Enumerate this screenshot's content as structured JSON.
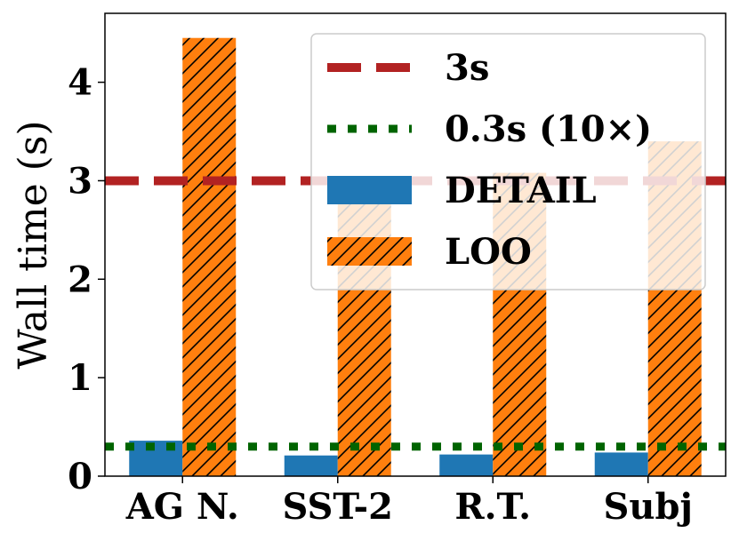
{
  "chart_data": {
    "type": "bar",
    "title": "",
    "xlabel": "",
    "ylabel": "Wall time (s)",
    "categories": [
      "AG N.",
      "SST-2",
      "R.T.",
      "Subj"
    ],
    "ylim": [
      0,
      4.7
    ],
    "yticks": [
      "0",
      "1",
      "2",
      "3",
      "4"
    ],
    "series": [
      {
        "name": "DETAIL",
        "values": [
          0.36,
          0.21,
          0.22,
          0.24
        ],
        "color": "#1f77b4",
        "hatch": "none"
      },
      {
        "name": "LOO",
        "values": [
          4.45,
          2.78,
          3.08,
          3.4
        ],
        "color": "#ff7f0e",
        "hatch": "diagonal"
      }
    ],
    "reference_lines": [
      {
        "name": "3s",
        "value": 3.0,
        "color": "#b22222",
        "style": "dashed"
      },
      {
        "name": "0.3s (10×)",
        "value": 0.3,
        "color": "#006400",
        "style": "dotted"
      }
    ],
    "legend": {
      "position": "upper-right",
      "items": [
        "3s",
        "0.3s (10×)",
        "DETAIL",
        "LOO"
      ]
    },
    "grid": false
  }
}
